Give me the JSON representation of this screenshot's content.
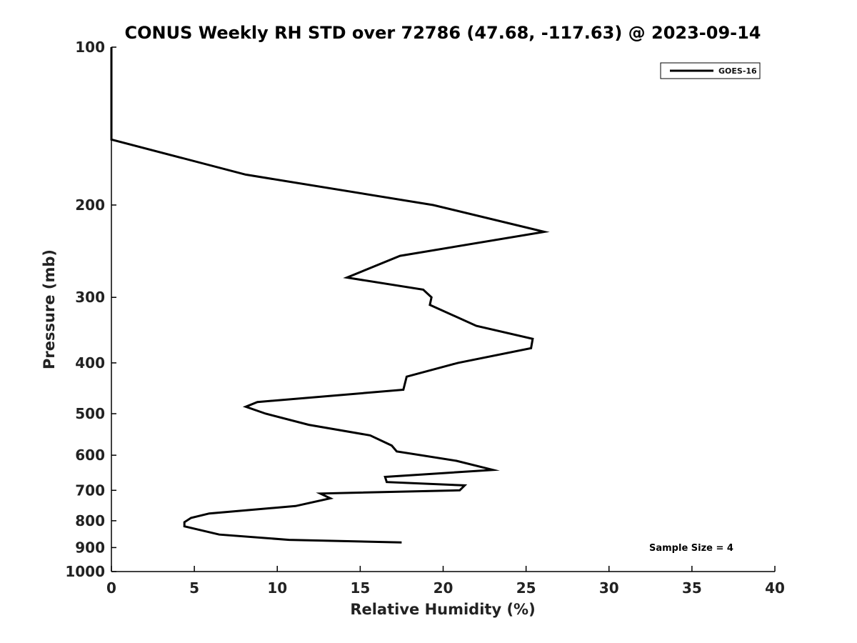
{
  "chart_data": {
    "type": "line",
    "title": "CONUS Weekly RH STD over 72786 (47.68, -117.63) @ 2023-09-14",
    "xlabel": "Relative Humidity (%)",
    "ylabel": "Pressure (mb)",
    "xlim": [
      0,
      40
    ],
    "ylim": [
      1000,
      100
    ],
    "yscale": "log",
    "xticks": [
      0,
      5,
      10,
      15,
      20,
      25,
      30,
      35,
      40
    ],
    "xtick_labels": [
      "0",
      "5",
      "10",
      "15",
      "20",
      "25",
      "30",
      "35",
      "40"
    ],
    "yticks": [
      100,
      200,
      300,
      400,
      500,
      600,
      700,
      800,
      900,
      1000
    ],
    "ytick_labels": [
      "100",
      "200",
      "300",
      "400",
      "500",
      "600",
      "700",
      "800",
      "900",
      "1000"
    ],
    "grid": false,
    "legend_position": "top-right",
    "annotation": "Sample Size = 4",
    "series": [
      {
        "name": "GOES-16",
        "color": "#000000",
        "points": [
          [
            0,
            100
          ],
          [
            0,
            125
          ],
          [
            0,
            150
          ],
          [
            8.1,
            175
          ],
          [
            19.4,
            200
          ],
          [
            26.1,
            225
          ],
          [
            17.4,
            250
          ],
          [
            14.2,
            275
          ],
          [
            18.8,
            290
          ],
          [
            19.3,
            300
          ],
          [
            19.2,
            310
          ],
          [
            22.0,
            340
          ],
          [
            25.4,
            360
          ],
          [
            25.3,
            375
          ],
          [
            20.9,
            400
          ],
          [
            17.8,
            425
          ],
          [
            17.6,
            450
          ],
          [
            8.8,
            475
          ],
          [
            8.1,
            485
          ],
          [
            9.3,
            500
          ],
          [
            11.9,
            525
          ],
          [
            15.6,
            550
          ],
          [
            16.9,
            575
          ],
          [
            17.2,
            590
          ],
          [
            20.8,
            615
          ],
          [
            23.0,
            640
          ],
          [
            16.5,
            660
          ],
          [
            16.6,
            675
          ],
          [
            21.3,
            685
          ],
          [
            21.0,
            700
          ],
          [
            12.6,
            710
          ],
          [
            13.2,
            725
          ],
          [
            11.1,
            750
          ],
          [
            5.9,
            775
          ],
          [
            4.8,
            790
          ],
          [
            4.4,
            805
          ],
          [
            4.4,
            820
          ],
          [
            6.5,
            850
          ],
          [
            10.7,
            870
          ],
          [
            17.5,
            880
          ]
        ]
      }
    ]
  }
}
